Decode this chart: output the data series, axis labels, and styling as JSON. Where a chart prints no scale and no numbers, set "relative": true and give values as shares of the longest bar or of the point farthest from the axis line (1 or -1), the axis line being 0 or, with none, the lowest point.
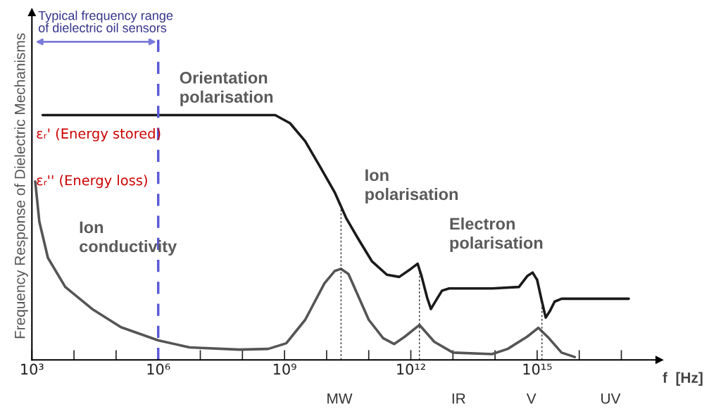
{
  "chart_data": {
    "type": "line",
    "relative": true,
    "ylabel": "Frequency Response of Dielectric Mechanisms",
    "xlabel": "f  [Hz]",
    "log": "x",
    "xlim": [
      1000,
      8e+17
    ],
    "xticks": [
      {
        "value": 1000,
        "label": "10³"
      },
      {
        "value": 10000.0,
        "label": null
      },
      {
        "value": 100000.0,
        "label": null
      },
      {
        "value": 1000000.0,
        "label": "10⁶"
      },
      {
        "value": 10000000.0,
        "label": null
      },
      {
        "value": 100000000.0,
        "label": null
      },
      {
        "value": 1000000000.0,
        "label": "10⁹"
      },
      {
        "value": 10000000000.0,
        "label": null
      },
      {
        "value": 100000000000.0,
        "label": null
      },
      {
        "value": 1000000000000.0,
        "label": "10¹²"
      },
      {
        "value": 10000000000000.0,
        "label": null
      },
      {
        "value": 100000000000000.0,
        "label": null
      },
      {
        "value": 1000000000000000.0,
        "label": "10¹⁵"
      },
      {
        "value": 1e+16,
        "label": null
      },
      {
        "value": 1e+17,
        "label": null
      }
    ],
    "tick_labels": "x",
    "grid": false,
    "marker": "none",
    "line_style": "solid",
    "series": [
      {
        "name": "εᵣ' (Energy stored)",
        "color": "#1a1a1a",
        "x": [
          1800,
          600000000.0,
          1350000000.0,
          3100000000.0,
          7000000000.0,
          15500000000.0,
          29000000000.0,
          58000000000.0,
          120000000000.0,
          270000000000.0,
          530000000000.0,
          1000000000000.0,
          1450000000000.0,
          1800000000000.0,
          2450000000000.0,
          3000000000000.0,
          4000000000000.0,
          5500000000000.0,
          8100000000000.0,
          85000000000000.0,
          370000000000000.0,
          580000000000000.0,
          780000000000000.0,
          1000000000000000.0,
          1300000000000000.0,
          1600000000000000.0,
          2000000000000000.0,
          2600000000000000.0,
          3800000000000000.0,
          1.5e+17
        ],
        "values": [
          1.0,
          1.0,
          0.967,
          0.893,
          0.789,
          0.685,
          0.58,
          0.491,
          0.402,
          0.348,
          0.339,
          0.372,
          0.393,
          0.342,
          0.253,
          0.208,
          0.244,
          0.283,
          0.292,
          0.292,
          0.298,
          0.342,
          0.357,
          0.327,
          0.238,
          0.173,
          0.199,
          0.238,
          0.25,
          0.25
        ]
      },
      {
        "name": "εᵣ'' (Energy loss)",
        "color": "#555555",
        "x": [
          1200,
          1500,
          2400,
          6200,
          27000.0,
          130000.0,
          1000000.0,
          5600000.0,
          85000000.0,
          410000000.0,
          1100000000.0,
          3100000000.0,
          8900000000.0,
          15500000000.0,
          22000000000.0,
          33000000000.0,
          100000000000.0,
          220000000000.0,
          400000000000.0,
          720000000000.0,
          1600000000000.0,
          3600000000000.0,
          10000000000000.0,
          85000000000000.0,
          200000000000000.0,
          580000000000000.0,
          1070000000000000.0,
          1900000000000000.0,
          3800000000000000.0,
          7800000000000000.0
        ],
        "values": [
          0.729,
          0.565,
          0.417,
          0.298,
          0.208,
          0.134,
          0.08,
          0.051,
          0.042,
          0.045,
          0.068,
          0.164,
          0.313,
          0.363,
          0.372,
          0.351,
          0.164,
          0.089,
          0.065,
          0.095,
          0.143,
          0.074,
          0.03,
          0.024,
          0.045,
          0.095,
          0.131,
          0.089,
          0.03,
          0.012
        ]
      }
    ],
    "ref_lines": [
      {
        "axis": "x",
        "value": 1000000.0,
        "color": "#5a5ad8",
        "line_style": "dashed"
      },
      {
        "axis": "x",
        "value": 22000000000.0,
        "color": "#333333",
        "line_style": "dotted"
      },
      {
        "axis": "x",
        "value": 1600000000000.0,
        "color": "#333333",
        "line_style": "dotted"
      },
      {
        "axis": "x",
        "value": 1300000000000000.0,
        "color": "#333333",
        "line_style": "dotted"
      }
    ],
    "annotations": [
      "Typical frequency range\nof dielectric oil sensors",
      "Orientation\npolarisation",
      "Ion\npolarisation",
      "Electron\npolarisation",
      "Ion\nconductivity",
      "MW",
      "IR",
      "V",
      "UV"
    ]
  }
}
